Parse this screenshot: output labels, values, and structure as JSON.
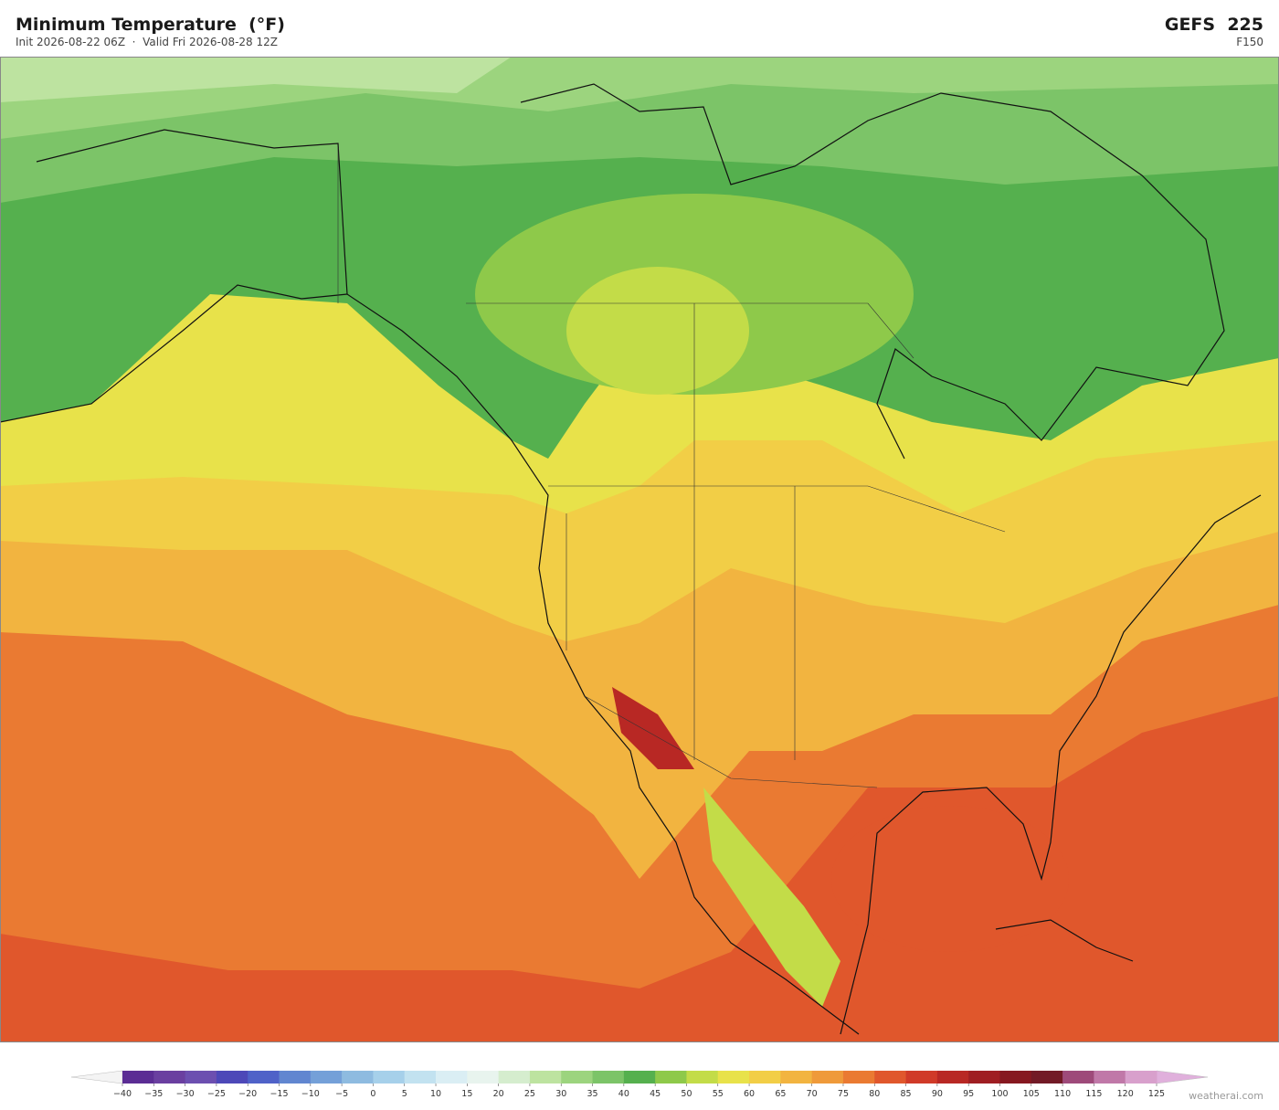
{
  "header": {
    "title": "Minimum Temperature  (°F)",
    "subtitle": "Init 2026-08-22 06Z  ·  Valid Fri 2026-08-28 12Z",
    "model": "GEFS  225",
    "forecast_hour": "F150"
  },
  "colorbar": {
    "ticks": [
      {
        "value": -40,
        "label": "−40"
      },
      {
        "value": -35,
        "label": "−35"
      },
      {
        "value": -30,
        "label": "−30"
      },
      {
        "value": -25,
        "label": "−25"
      },
      {
        "value": -20,
        "label": "−20"
      },
      {
        "value": -15,
        "label": "−15"
      },
      {
        "value": -10,
        "label": "−10"
      },
      {
        "value": -5,
        "label": "−5"
      },
      0,
      5,
      10,
      15,
      20,
      25,
      30,
      35,
      40,
      45,
      50,
      55,
      60,
      65,
      70,
      75,
      80,
      85,
      90,
      95,
      100,
      105,
      110,
      115,
      120,
      125
    ],
    "colors": [
      "#5b2d94",
      "#6a3fa0",
      "#6c4fb0",
      "#4d48b8",
      "#4f62c8",
      "#6186d0",
      "#74a0d8",
      "#8ebbe0",
      "#a6d0ea",
      "#c2e2f0",
      "#daeef4",
      "#e8f4ee",
      "#d5edce",
      "#bde3a0",
      "#9cd47e",
      "#7cc468",
      "#55b04e",
      "#8ec94a",
      "#c3dc48",
      "#e8e24a",
      "#f2ce46",
      "#f2b440",
      "#ef9a3a",
      "#ea7a32",
      "#e0572c",
      "#d03a28",
      "#b82824",
      "#9f1e22",
      "#861820",
      "#721a26",
      "#9e4a7a",
      "#c078a8",
      "#d8a0cc"
    ],
    "under_color": "#f4f4f4",
    "over_color": "#e0b0dc"
  },
  "footer": {
    "credit": "weatherai.com"
  }
}
